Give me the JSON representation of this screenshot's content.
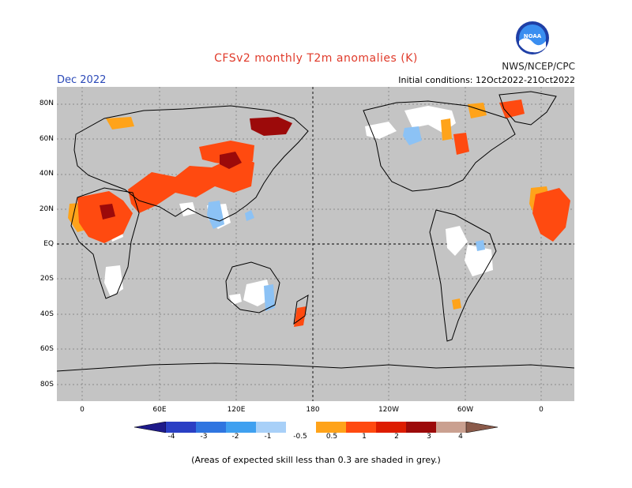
{
  "header": {
    "title": "CFSv2 monthly T2m anomalies (K)",
    "agency": "NWS/NCEP/CPC",
    "month": "Dec 2022",
    "initial_conditions": "Initial conditions: 12Oct2022-21Oct2022",
    "logo_text": "NOAA"
  },
  "map": {
    "lat_labels": [
      "80N",
      "60N",
      "40N",
      "20N",
      "EQ",
      "20S",
      "40S",
      "60S",
      "80S"
    ],
    "lon_labels": [
      "0",
      "60E",
      "120E",
      "180",
      "120W",
      "60W",
      "0"
    ],
    "skill_shading_color": "#c4c4c4",
    "land_outline_color": "#000000"
  },
  "colorbar": {
    "labels": [
      "-4",
      "-3",
      "-2",
      "-1",
      "-0.5",
      "0.5",
      "1",
      "2",
      "3",
      "4"
    ],
    "colors": [
      "#1e1a8a",
      "#2a3fc4",
      "#2f75e0",
      "#3fa0f0",
      "#a8d0f8",
      "#ffffff",
      "#ffa31a",
      "#ff4a10",
      "#dd1c00",
      "#9c0a0a",
      "#caa090",
      "#8a5a4a"
    ]
  },
  "footnote": "(Areas of expected skill less than 0.3 are shaded in grey.)"
}
